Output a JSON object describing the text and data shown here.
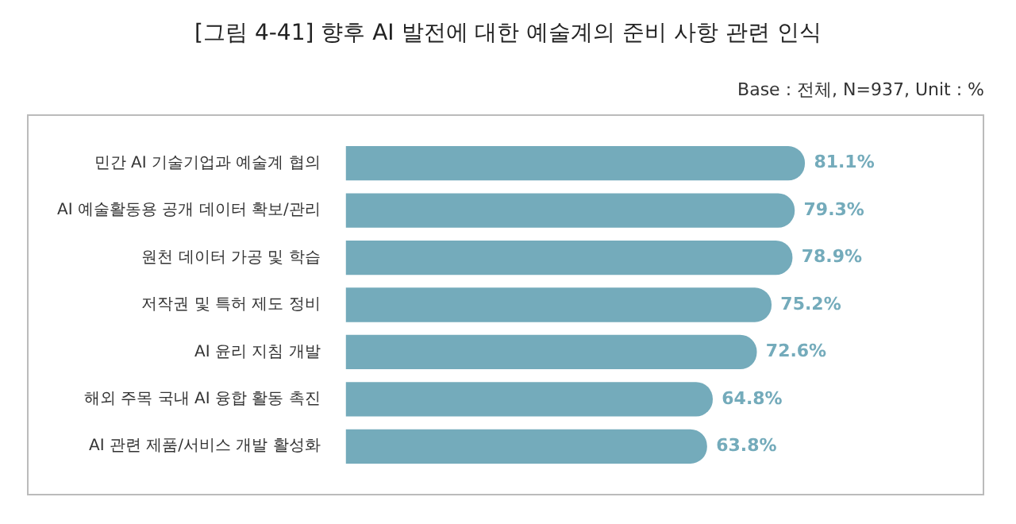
{
  "chart_data": {
    "type": "bar",
    "orientation": "horizontal",
    "title": "[그림 4-41] 향후 AI 발전에 대한 예술계의 준비 사항 관련 인식",
    "subtitle": "Base : 전체, N=937, Unit : %",
    "categories": [
      "민간 AI 기술기업과 예술계 협의",
      "AI 예술활동용 공개 데이터 확보/관리",
      "원천 데이터 가공 및 학습",
      "저작권 및 특허 제도 정비",
      "AI 윤리 지침 개발",
      "해외 주목 국내 AI 융합 활동 촉진",
      "AI 관련 제품/서비스 개발 활성화"
    ],
    "values": [
      81.1,
      79.3,
      78.9,
      75.2,
      72.6,
      64.8,
      63.8
    ],
    "value_labels": [
      "81.1%",
      "79.3%",
      "78.9%",
      "75.2%",
      "72.6%",
      "64.8%",
      "63.8%"
    ],
    "color": "#74abbb",
    "tick_labels": "y"
  }
}
